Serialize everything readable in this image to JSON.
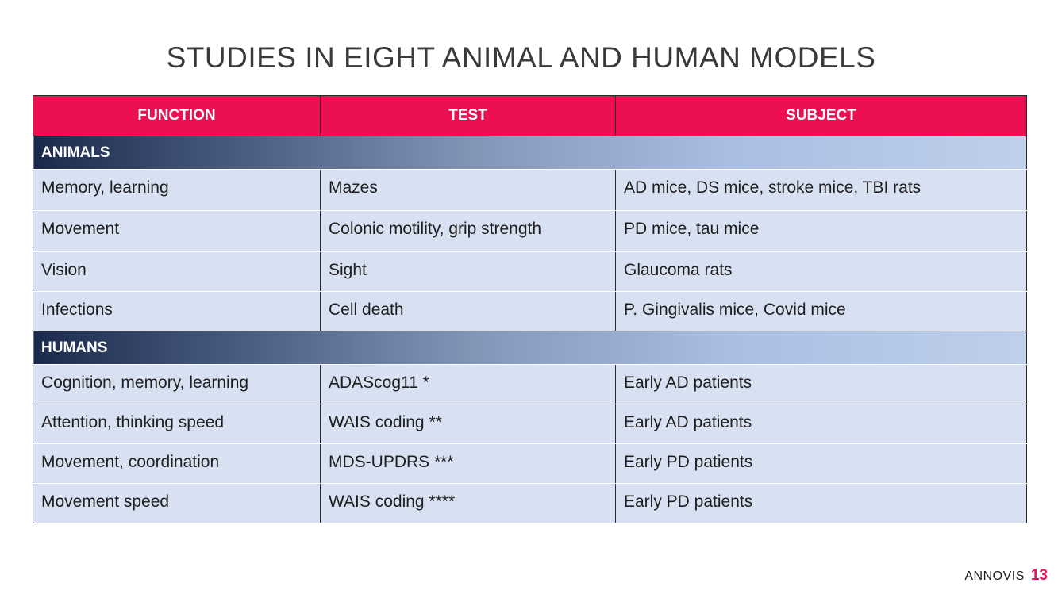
{
  "slide": {
    "title": "STUDIES IN EIGHT ANIMAL AND HUMAN MODELS"
  },
  "table": {
    "headers": [
      "FUNCTION",
      "TEST",
      "SUBJECT"
    ],
    "sections": [
      {
        "label": "ANIMALS",
        "rows": [
          [
            "Memory, learning",
            "Mazes",
            "AD mice, DS mice, stroke mice, TBI rats"
          ],
          [
            "Movement",
            "Colonic motility, grip strength",
            "PD mice, tau mice"
          ],
          [
            "Vision",
            "Sight",
            "Glaucoma rats"
          ],
          [
            "Infections",
            "Cell death",
            "P. Gingivalis mice, Covid mice"
          ]
        ]
      },
      {
        "label": "HUMANS",
        "rows": [
          [
            "Cognition, memory, learning",
            "ADAScog11 *",
            "Early AD patients"
          ],
          [
            "Attention, thinking speed",
            "WAIS coding **",
            "Early AD patients"
          ],
          [
            "Movement, coordination",
            "MDS-UPDRS ***",
            "Early PD patients"
          ],
          [
            "Movement speed",
            "WAIS coding ****",
            "Early PD patients"
          ]
        ]
      }
    ]
  },
  "footer": {
    "brand": "ANNOVIS",
    "page": "13"
  },
  "colors": {
    "header_bg": "#ec1052",
    "row_bg": "#d8e1f1",
    "section_gradient_start": "#1b2a4c",
    "section_gradient_end": "#bed0ea",
    "page_number": "#ec1052"
  }
}
